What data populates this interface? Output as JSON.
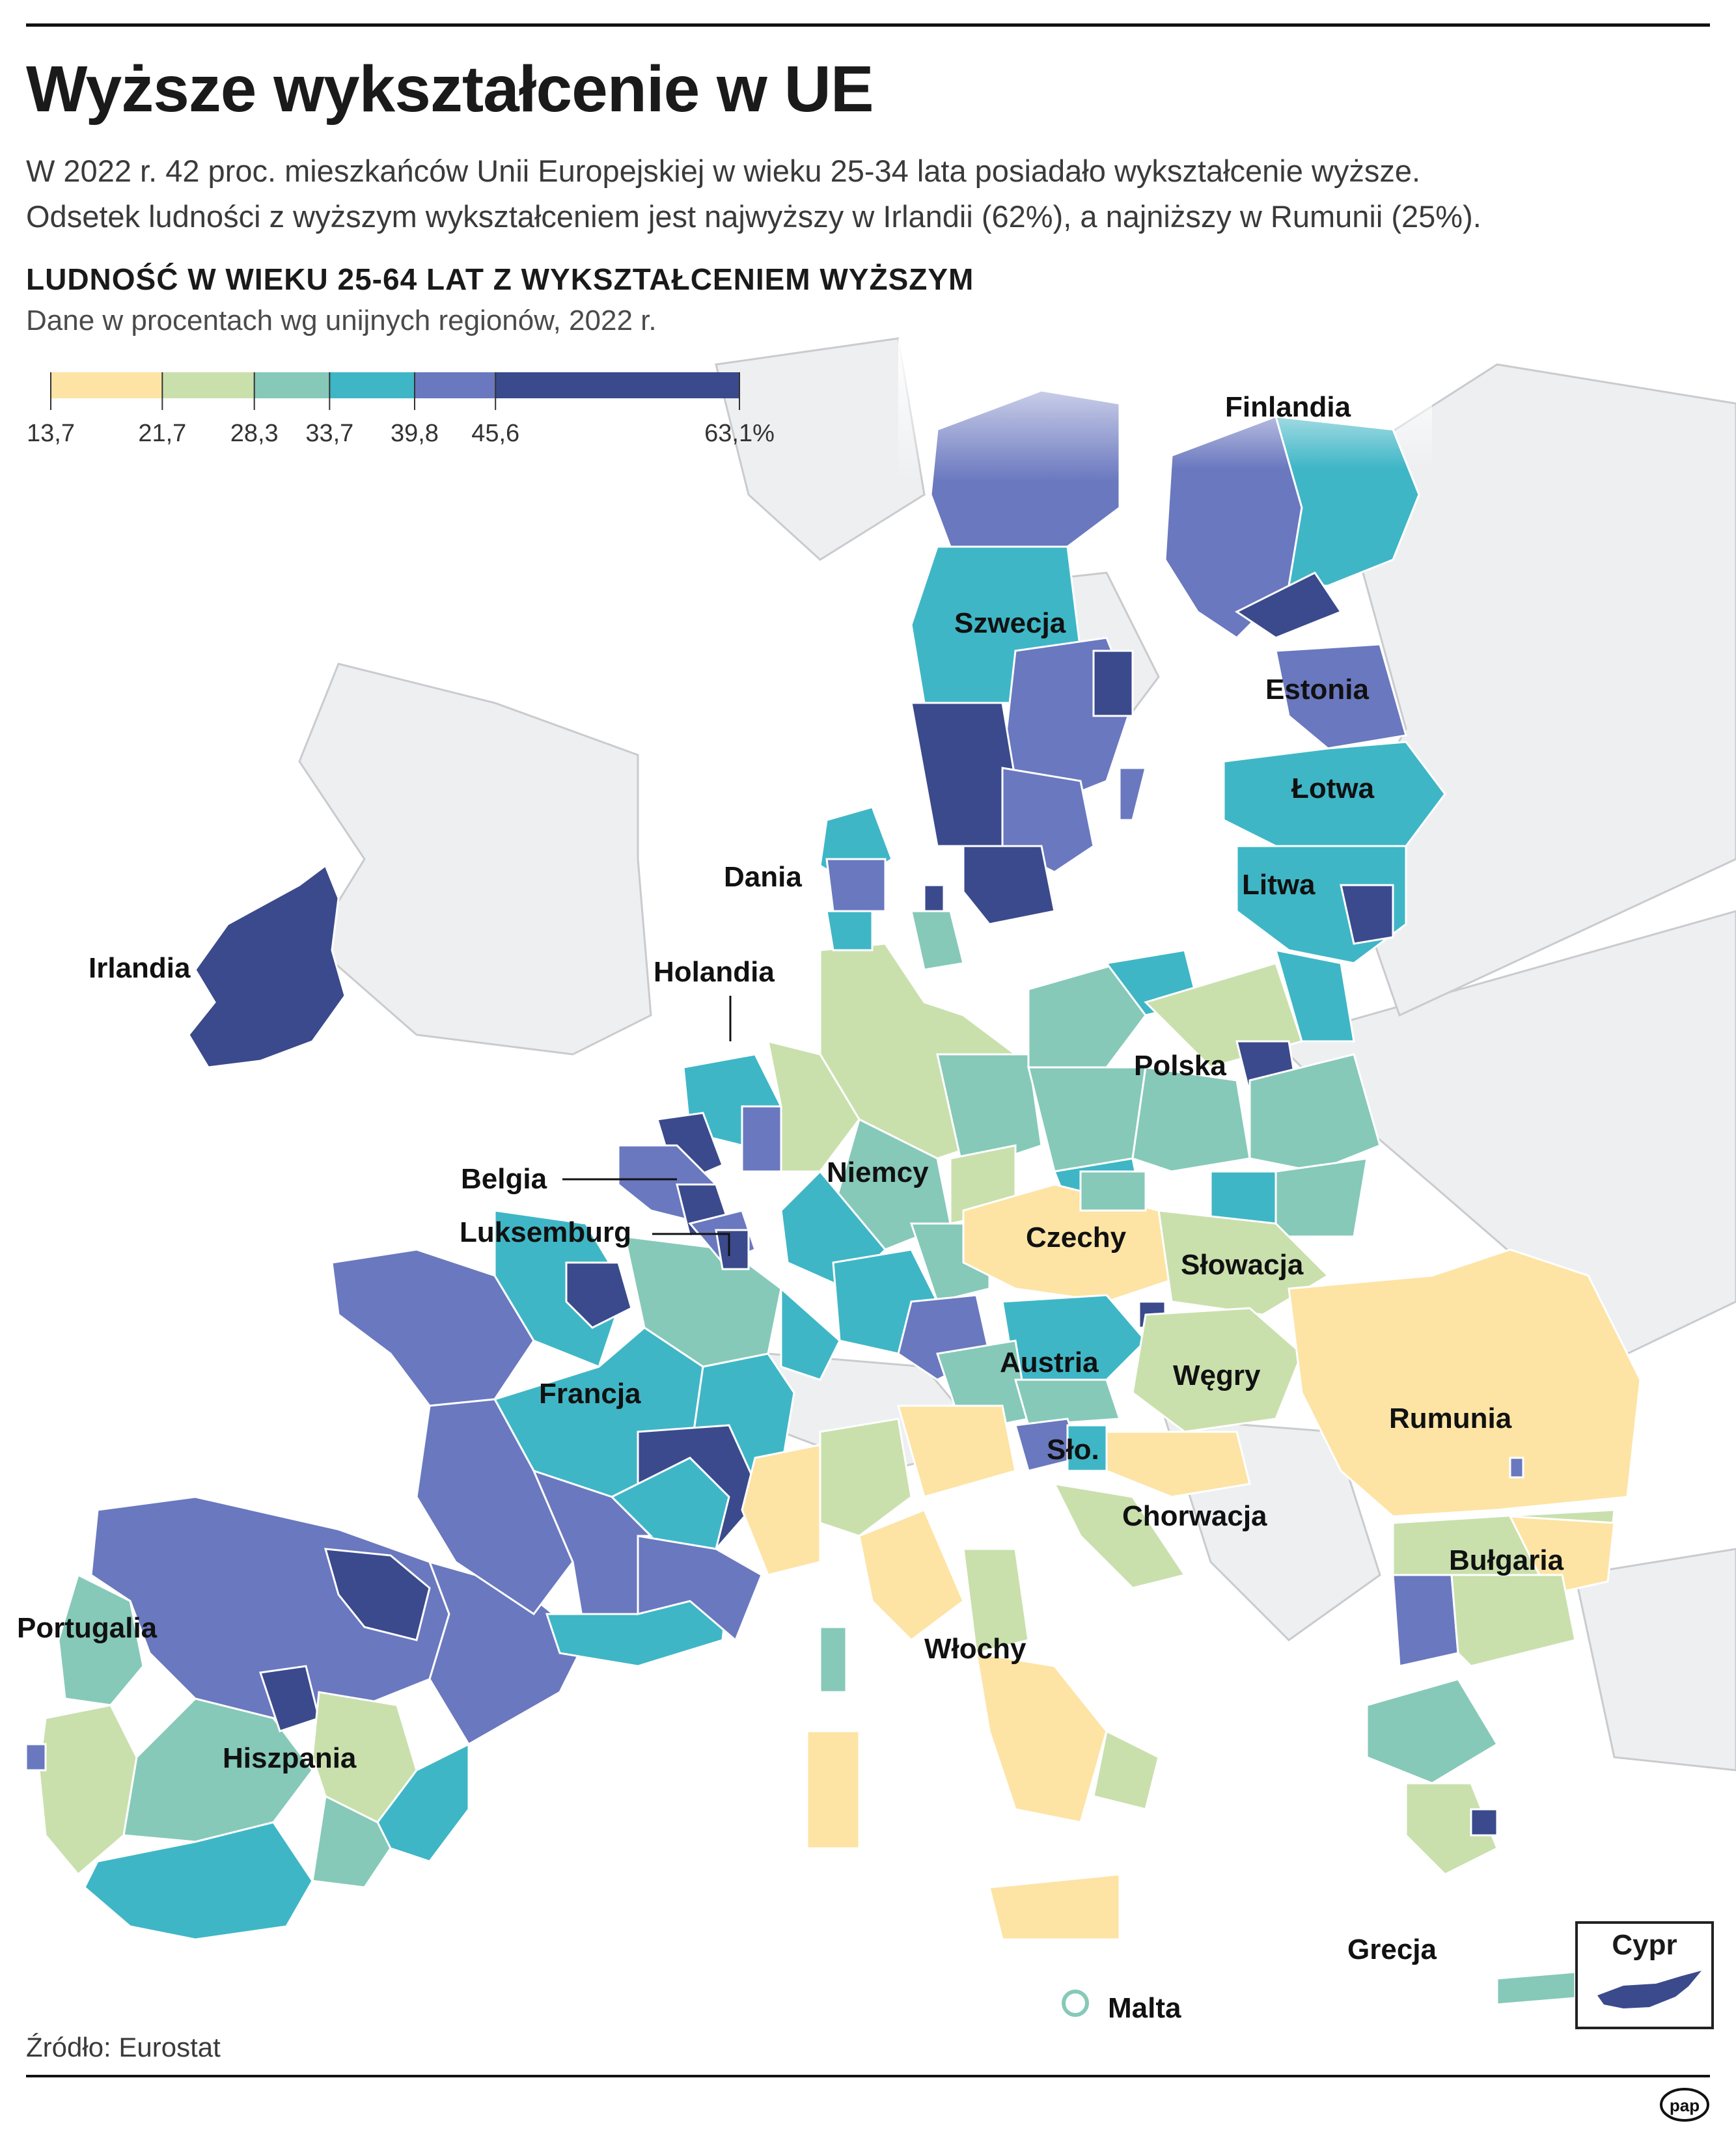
{
  "header": {
    "title": "Wyższe wykształcenie w UE",
    "intro_line1": "W 2022 r. 42 proc. mieszkańców Unii Europejskiej w wieku 25-34 lata posiadało wykształcenie wyższe.",
    "intro_line2": "Odsetek ludności z wyższym wykształceniem jest najwyższy w Irlandii (62%), a najniższy w Rumunii (25%)."
  },
  "map": {
    "title": "LUDNOŚĆ W WIEKU 25-64 LAT Z WYKSZTAŁCENIEM WYŻSZYM",
    "subtitle": "Dane w procentach wg unijnych regionów, 2022 r.",
    "legend": {
      "breaks": [
        "13,7",
        "21,7",
        "28,3",
        "33,7",
        "39,8",
        "45,6",
        "63,1%"
      ],
      "break_values": [
        13.7,
        21.7,
        28.3,
        33.7,
        39.8,
        45.6,
        63.1
      ],
      "colors": [
        "#fde4a5",
        "#c9e0ad",
        "#86c9b8",
        "#3fb6c6",
        "#6a78bf",
        "#3b4a8c"
      ]
    },
    "country_labels": {
      "finlandia": "Finlandia",
      "szwecja": "Szwecja",
      "estonia": "Estonia",
      "lotwa": "Łotwa",
      "litwa": "Litwa",
      "dania": "Dania",
      "irlandia": "Irlandia",
      "holandia": "Holandia",
      "polska": "Polska",
      "belgia": "Belgia",
      "niemcy": "Niemcy",
      "luksemburg": "Luksemburg",
      "czechy": "Czechy",
      "slowacja": "Słowacja",
      "austria": "Austria",
      "wegry": "Węgry",
      "francja": "Francja",
      "rumunia": "Rumunia",
      "slo": "Sło.",
      "chorwacja": "Chorwacja",
      "bulgaria": "Bułgaria",
      "portugalia": "Portugalia",
      "wlochy": "Włochy",
      "hiszpania": "Hiszpania",
      "grecja": "Grecja",
      "malta": "Malta",
      "cypr": "Cypr"
    }
  },
  "footer": {
    "source": "Źródło: Eurostat",
    "logo": "pap"
  }
}
